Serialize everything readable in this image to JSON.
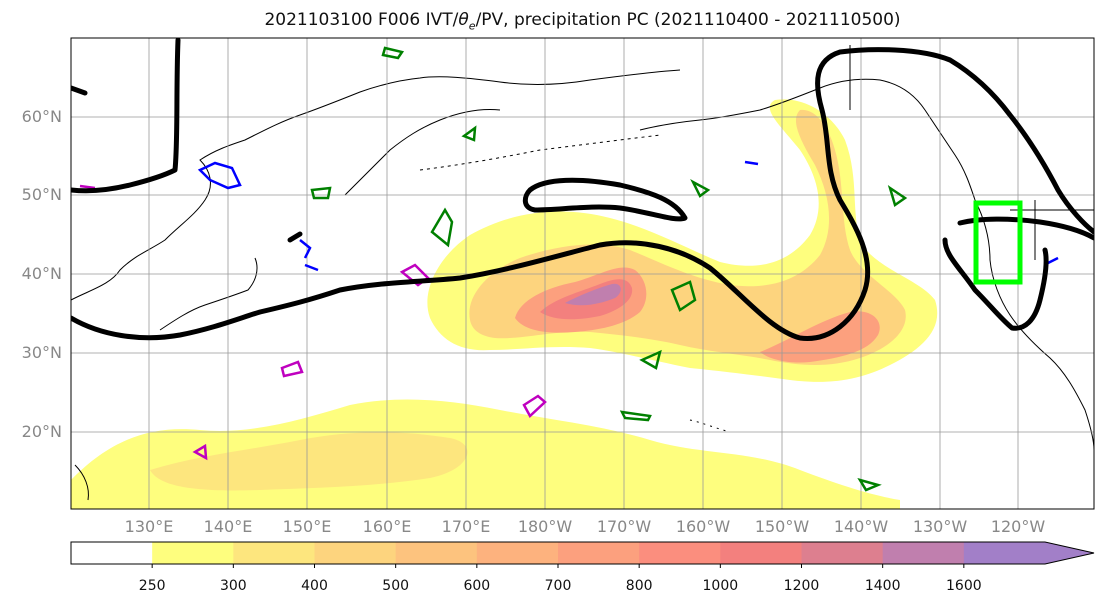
{
  "title": {
    "prefix": "2021103100 F006 IVT/",
    "theta": "θ",
    "theta_sub": "e",
    "suffix": "/PV, precipitation PC (2021110400 - 2021110500)"
  },
  "axes": {
    "lat_labels": [
      "60°N",
      "50°N",
      "40°N",
      "30°N",
      "20°N"
    ],
    "lon_labels": [
      "130°E",
      "140°E",
      "150°E",
      "160°E",
      "170°E",
      "180°W",
      "170°W",
      "160°W",
      "150°W",
      "140°W",
      "130°W",
      "120°W"
    ]
  },
  "colorbar": {
    "tick_labels": [
      "250",
      "300",
      "400",
      "500",
      "600",
      "700",
      "800",
      "1000",
      "1200",
      "1400",
      "1600"
    ],
    "colors": [
      "#ffffff",
      "#fefe7e",
      "#fde67e",
      "#fdd47e",
      "#fdc37e",
      "#fdb27e",
      "#fca07e",
      "#fb8e7e",
      "#f3807e",
      "#dd7f8f",
      "#c07fae",
      "#a27fc8"
    ]
  },
  "colors": {
    "contour_black": "#000000",
    "contour_green": "#008000",
    "contour_blue": "#0000ff",
    "contour_magenta": "#bf00bf",
    "box_lime": "#00ff00",
    "grid": "#999999",
    "coast": "#000000"
  }
}
